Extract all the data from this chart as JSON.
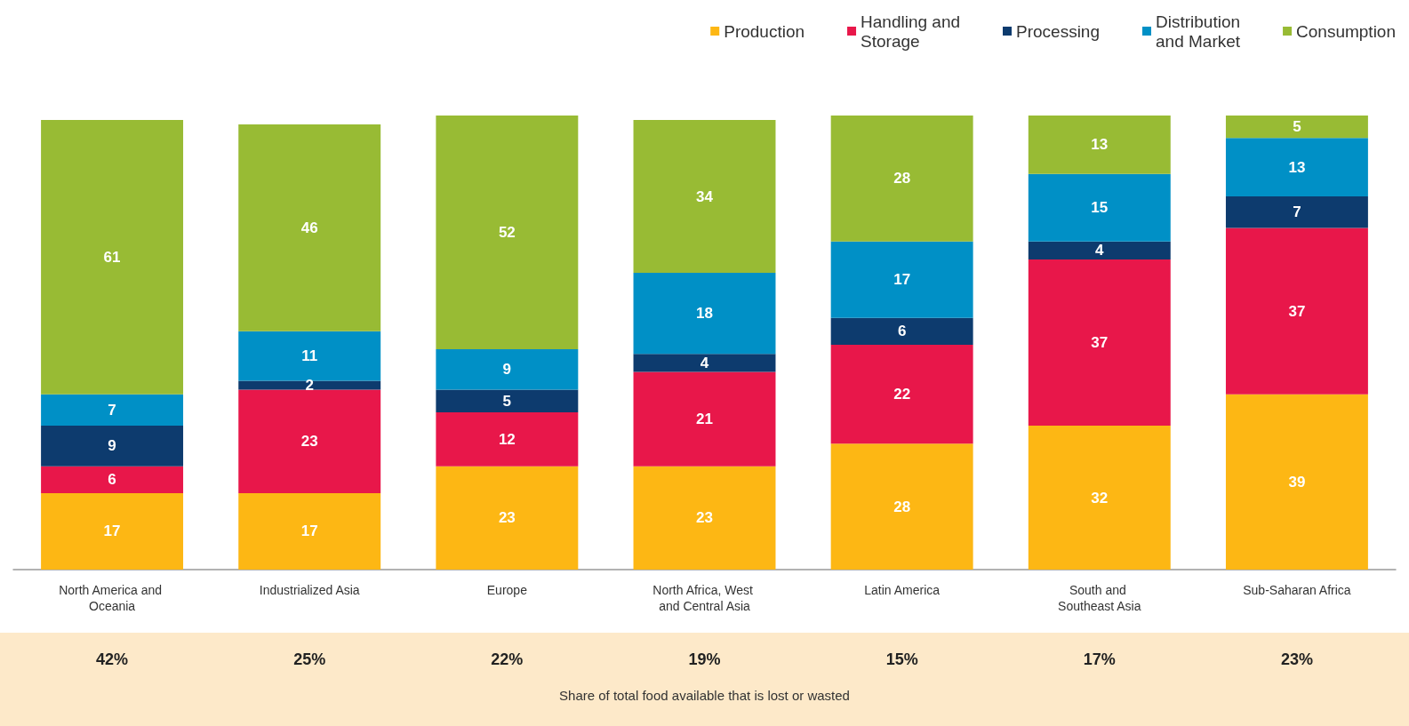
{
  "chart_data": {
    "type": "bar",
    "stacked": true,
    "data_labels": true,
    "legend": "top right",
    "categories": [
      "North America and Oceania",
      "Industrialized Asia",
      "Europe",
      "North Africa, West and Central Asia",
      "Latin America",
      "South and Southeast Asia",
      "Sub-Saharan Africa"
    ],
    "series": [
      {
        "name": "Production",
        "color": "#fdb714",
        "values": [
          17,
          17,
          23,
          23,
          28,
          32,
          39
        ]
      },
      {
        "name": "Handling and Storage",
        "color": "#e8174a",
        "values": [
          6,
          23,
          12,
          21,
          22,
          37,
          37
        ]
      },
      {
        "name": "Processing",
        "color": "#0d3b6e",
        "values": [
          9,
          2,
          5,
          4,
          6,
          4,
          7
        ]
      },
      {
        "name": "Distribution and Market",
        "color": "#0090c6",
        "values": [
          7,
          11,
          9,
          18,
          17,
          15,
          13
        ]
      },
      {
        "name": "Consumption",
        "color": "#98bb34",
        "values": [
          61,
          46,
          52,
          34,
          28,
          13,
          5
        ]
      }
    ],
    "annotations": [
      "42%",
      "25%",
      "22%",
      "19%",
      "15%",
      "17%",
      "23%",
      "Share of total food available that is lost or wasted"
    ]
  }
}
